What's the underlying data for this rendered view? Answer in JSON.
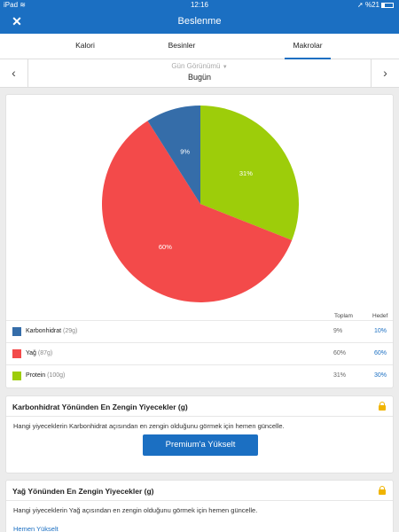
{
  "status": {
    "device": "iPad",
    "time": "12:16",
    "battery": "%21"
  },
  "nav": {
    "title": "Beslenme"
  },
  "tabs": [
    {
      "label": "Kalori",
      "active": false
    },
    {
      "label": "Besinler",
      "active": false
    },
    {
      "label": "Makrolar",
      "active": true
    }
  ],
  "day": {
    "view_label": "Gün Görünümü",
    "value": "Bugün"
  },
  "chart_data": {
    "type": "pie",
    "slices": [
      {
        "name": "Karbonhidrat",
        "value": 9,
        "label": "9%",
        "color": "#356da9"
      },
      {
        "name": "Yağ",
        "value": 60,
        "label": "60%",
        "color": "#f34a4a"
      },
      {
        "name": "Protein",
        "value": 31,
        "label": "31%",
        "color": "#9dcd0a"
      }
    ]
  },
  "table": {
    "col_total": "Toplam",
    "col_goal": "Hedef",
    "rows": [
      {
        "name": "Karbonhidrat",
        "amount": "(29g)",
        "total": "9%",
        "goal": "10%",
        "color": "#356da9"
      },
      {
        "name": "Yağ",
        "amount": "(87g)",
        "total": "60%",
        "goal": "60%",
        "color": "#f34a4a"
      },
      {
        "name": "Protein",
        "amount": "(100g)",
        "total": "31%",
        "goal": "30%",
        "color": "#9dcd0a"
      }
    ]
  },
  "cards": [
    {
      "title": "Karbonhidrat Yönünden En Zengin Yiyecekler (g)",
      "text": "Hangi yiyeceklerin Karbonhidrat açısından en zengin olduğunu görmek için hemen güncelle.",
      "button": "Premium'a Yükselt"
    },
    {
      "title": "Yağ Yönünden En Zengin Yiyecekler (g)",
      "text": "Hangi yiyeceklerin Yağ açısından en zengin olduğunu görmek için hemen güncelle.",
      "link": "Hemen Yükselt"
    }
  ]
}
